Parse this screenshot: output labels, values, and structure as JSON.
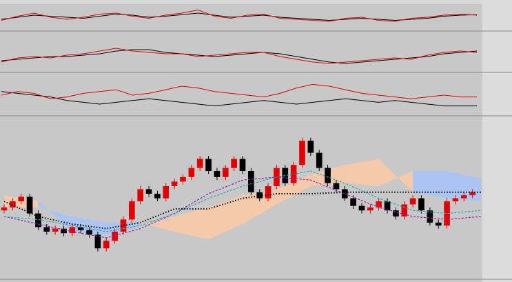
{
  "chart_data": [
    {
      "type": "line",
      "ylim": [
        0,
        100
      ],
      "series": [
        {
          "color": "#000000",
          "values": [
            40,
            50,
            60,
            55,
            50,
            45,
            55,
            65,
            60,
            50,
            55,
            62,
            70,
            60,
            50,
            55,
            60,
            50,
            45,
            40,
            35,
            40,
            45,
            40,
            35,
            40,
            45,
            55,
            60,
            62
          ]
        },
        {
          "color": "#e00000",
          "values": [
            35,
            55,
            70,
            50,
            40,
            50,
            65,
            70,
            55,
            45,
            60,
            70,
            85,
            55,
            45,
            60,
            65,
            45,
            40,
            35,
            30,
            45,
            50,
            35,
            30,
            45,
            50,
            60,
            65,
            60
          ]
        }
      ]
    },
    {
      "type": "line",
      "ylim": [
        0,
        100
      ],
      "series": [
        {
          "color": "#000000",
          "values": [
            30,
            35,
            40,
            45,
            45,
            50,
            55,
            65,
            70,
            70,
            60,
            55,
            50,
            45,
            50,
            55,
            60,
            55,
            45,
            35,
            25,
            20,
            25,
            30,
            35,
            40,
            45,
            55,
            60,
            65
          ]
        },
        {
          "color": "#e00000",
          "values": [
            25,
            40,
            45,
            40,
            50,
            55,
            65,
            75,
            65,
            60,
            55,
            55,
            45,
            50,
            55,
            60,
            60,
            45,
            35,
            25,
            20,
            25,
            30,
            35,
            40,
            35,
            50,
            60,
            65,
            60
          ]
        }
      ]
    },
    {
      "type": "line",
      "ylim": [
        0,
        100
      ],
      "series": [
        {
          "color": "#000000",
          "values": [
            60,
            55,
            50,
            45,
            35,
            30,
            25,
            30,
            35,
            40,
            35,
            30,
            25,
            20,
            25,
            30,
            35,
            30,
            25,
            30,
            35,
            40,
            35,
            30,
            35,
            30,
            25,
            20,
            20,
            20
          ]
        },
        {
          "color": "#e00000",
          "values": [
            50,
            60,
            55,
            40,
            45,
            55,
            60,
            65,
            50,
            55,
            65,
            75,
            70,
            60,
            55,
            50,
            45,
            55,
            70,
            80,
            75,
            65,
            55,
            50,
            45,
            40,
            45,
            50,
            45,
            45
          ]
        }
      ]
    },
    {
      "type": "candlestick",
      "ylim": [
        0,
        100
      ],
      "up_color": "#e00000",
      "down_color": "#000000",
      "open": [
        44,
        46,
        50,
        53,
        42,
        33,
        30,
        32,
        29,
        33,
        31,
        28,
        19,
        24,
        30,
        38,
        50,
        58,
        55,
        52,
        60,
        63,
        66,
        72,
        78,
        70,
        66,
        72,
        78,
        70,
        56,
        52,
        60,
        72,
        62,
        74,
        90,
        82,
        72,
        62,
        58,
        52,
        47,
        44,
        46,
        50,
        44,
        40,
        48,
        52,
        44,
        36,
        34,
        50,
        52,
        54
      ],
      "high": [
        48,
        52,
        55,
        55,
        44,
        35,
        34,
        34,
        35,
        35,
        33,
        30,
        26,
        32,
        40,
        52,
        60,
        60,
        57,
        62,
        65,
        68,
        74,
        80,
        80,
        72,
        74,
        80,
        80,
        72,
        58,
        62,
        74,
        74,
        76,
        92,
        92,
        84,
        74,
        64,
        60,
        54,
        49,
        48,
        52,
        52,
        46,
        50,
        54,
        54,
        46,
        38,
        52,
        54,
        56,
        58
      ],
      "low": [
        42,
        44,
        48,
        40,
        31,
        28,
        28,
        27,
        27,
        29,
        26,
        17,
        17,
        22,
        28,
        36,
        48,
        53,
        50,
        50,
        58,
        61,
        64,
        70,
        68,
        64,
        64,
        70,
        68,
        54,
        50,
        50,
        58,
        60,
        60,
        72,
        80,
        70,
        60,
        56,
        50,
        45,
        42,
        42,
        44,
        42,
        38,
        38,
        46,
        42,
        34,
        32,
        32,
        48,
        50,
        52
      ],
      "close": [
        46,
        50,
        53,
        42,
        33,
        30,
        32,
        29,
        33,
        31,
        28,
        19,
        24,
        30,
        38,
        50,
        58,
        55,
        52,
        60,
        63,
        66,
        72,
        78,
        70,
        66,
        72,
        78,
        70,
        56,
        52,
        60,
        72,
        62,
        74,
        90,
        82,
        72,
        62,
        58,
        52,
        47,
        44,
        46,
        50,
        44,
        40,
        48,
        52,
        44,
        36,
        34,
        50,
        52,
        54,
        56
      ],
      "cloud": {
        "up_color": "#f9c9a8",
        "down_color": "#a9c3f5",
        "span_a": [
          54,
          50,
          30,
          28,
          34,
          40,
          46,
          54,
          58,
          68,
          74,
          78,
          56,
          52,
          50
        ],
        "span_b": [
          46,
          46,
          40,
          36,
          36,
          30,
          25,
          35,
          48,
          60,
          62,
          60,
          70,
          70,
          65
        ]
      },
      "lines": [
        {
          "color": "#9a1fb0",
          "style": "dashed",
          "values": [
            40,
            35,
            30,
            26,
            32,
            42,
            55,
            64,
            66,
            64,
            55,
            46,
            40,
            38,
            40
          ]
        },
        {
          "color": "#2aa8b8",
          "style": "dashed",
          "values": [
            40,
            38,
            34,
            30,
            34,
            42,
            52,
            60,
            66,
            70,
            62,
            52,
            44,
            42,
            44
          ]
        },
        {
          "color": "#000000",
          "style": "dotted",
          "values": [
            50,
            40,
            35,
            32,
            36,
            45,
            45,
            52,
            55,
            55,
            56,
            56,
            56,
            56,
            56
          ]
        }
      ]
    }
  ]
}
